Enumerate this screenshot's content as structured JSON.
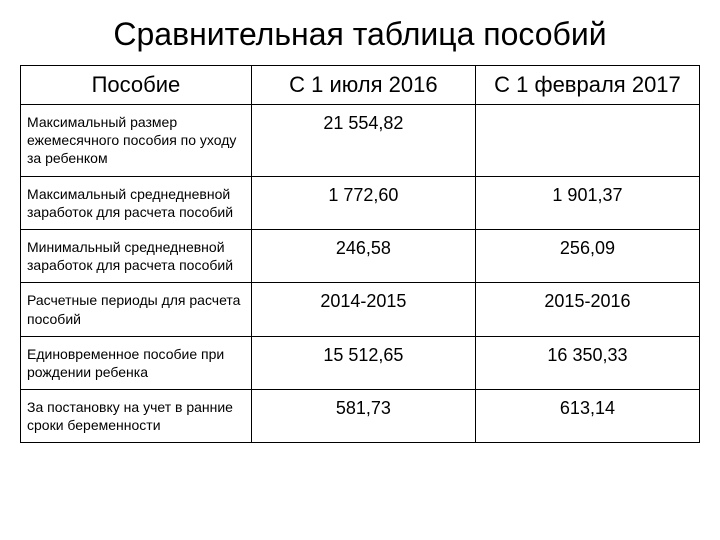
{
  "title": "Сравнительная таблица пособий",
  "columns": {
    "c1": "Пособие",
    "c2": "С 1 июля 2016",
    "c3": "С 1 февраля 2017"
  },
  "rows": [
    {
      "label": "Максимальный размер ежемесячного пособия по уходу за ребенком",
      "v1": "21 554,82",
      "v2": ""
    },
    {
      "label": "Максимальный среднедневной заработок для расчета пособий",
      "v1": "1 772,60",
      "v2": "1 901,37"
    },
    {
      "label": "Минимальный среднедневной заработок для расчета пособий",
      "v1": "246,58",
      "v2": "256,09"
    },
    {
      "label": "Расчетные периоды для расчета пособий",
      "v1": "2014-2015",
      "v2": "2015-2016"
    },
    {
      "label": "Единовременное пособие при рождении ребенка",
      "v1": "15 512,65",
      "v2": "16 350,33"
    },
    {
      "label": "За постановку на учет в ранние сроки беременности",
      "v1": "581,73",
      "v2": "613,14"
    }
  ],
  "style": {
    "type": "table",
    "background_color": "#ffffff",
    "border_color": "#000000",
    "title_fontsize": 32,
    "header_fontsize": 22,
    "label_fontsize": 14,
    "value_fontsize": 18,
    "column_widths_pct": [
      34,
      33,
      33
    ]
  }
}
